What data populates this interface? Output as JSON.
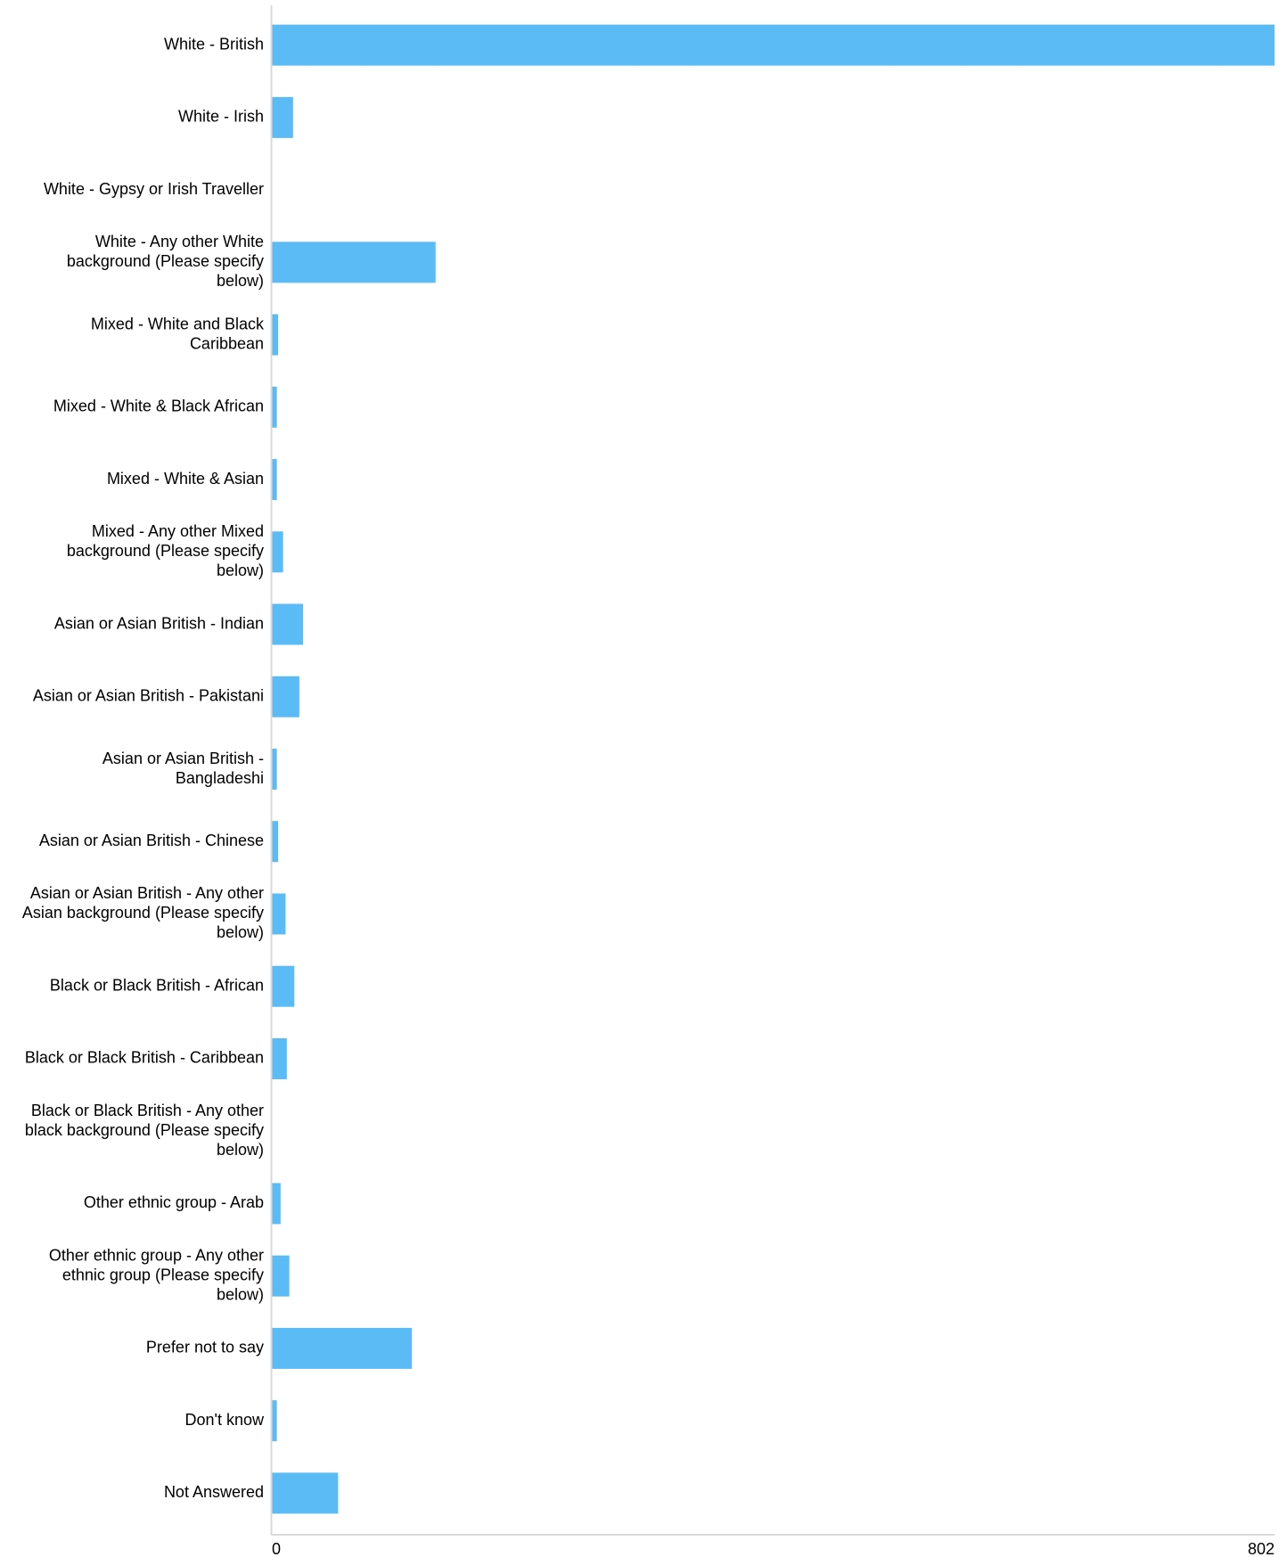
{
  "chart_data": {
    "type": "bar",
    "orientation": "horizontal",
    "categories": [
      "White - British",
      "White - Irish",
      "White - Gypsy or Irish Traveller",
      "White - Any other White background (Please specify below)",
      "Mixed - White and Black Caribbean",
      "Mixed - White & Black African",
      "Mixed - White & Asian",
      "Mixed - Any other Mixed background (Please specify below)",
      "Asian or Asian British - Indian",
      "Asian or Asian British - Pakistani",
      "Asian or Asian British - Bangladeshi",
      "Asian or Asian British - Chinese",
      "Asian or Asian British - Any other Asian background (Please specify below)",
      "Black or Black British - African",
      "Black or Black British - Caribbean",
      "Black or Black British - Any other black background (Please specify below)",
      "Other ethnic group - Arab",
      "Other ethnic group - Any other ethnic group (Please specify below)",
      "Prefer not to say",
      "Don't know",
      "Not Answered"
    ],
    "label_lines": [
      [
        "White - British"
      ],
      [
        "White - Irish"
      ],
      [
        "White - Gypsy or Irish Traveller"
      ],
      [
        "White - Any other White",
        "background (Please specify",
        "below)"
      ],
      [
        "Mixed - White and Black",
        "Caribbean"
      ],
      [
        "Mixed - White & Black African"
      ],
      [
        "Mixed - White & Asian"
      ],
      [
        "Mixed - Any other Mixed",
        "background (Please specify",
        "below)"
      ],
      [
        "Asian or Asian British - Indian"
      ],
      [
        "Asian or Asian British - Pakistani"
      ],
      [
        "Asian or Asian British -",
        "Bangladeshi"
      ],
      [
        "Asian or Asian British - Chinese"
      ],
      [
        "Asian or Asian British - Any other",
        "Asian background (Please specify",
        "below)"
      ],
      [
        "Black or Black British - African"
      ],
      [
        "Black or Black British - Caribbean"
      ],
      [
        "Black or Black British - Any other",
        "black background (Please specify",
        "below)"
      ],
      [
        "Other ethnic group - Arab"
      ],
      [
        "Other ethnic group - Any other",
        "ethnic group (Please specify",
        "below)"
      ],
      [
        "Prefer not to say"
      ],
      [
        "Don't know"
      ],
      [
        "Not Answered"
      ]
    ],
    "values": [
      802,
      17,
      0,
      131,
      5,
      4,
      4,
      9,
      25,
      22,
      4,
      5,
      11,
      18,
      12,
      0,
      7,
      14,
      112,
      4,
      53
    ],
    "xlim": [
      0,
      802
    ],
    "x_ticks": [
      "0",
      "802"
    ],
    "bar_color": "#5bbcf5",
    "axis_color": "#d9d9d9",
    "grid": false,
    "legend": "none"
  }
}
